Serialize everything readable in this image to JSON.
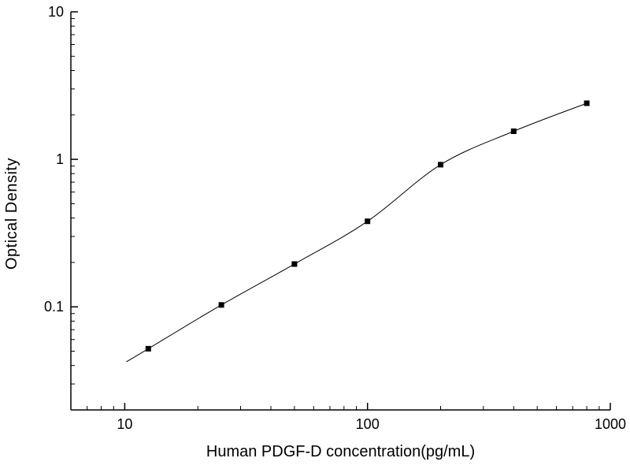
{
  "figure": {
    "background": "#ffffff",
    "axis_color": "#000000"
  },
  "chart_data": {
    "type": "scatter",
    "title": "",
    "xlabel": "Human PDGF-D concentration(pg/mL)",
    "ylabel": "Optical Density",
    "x_scale": "log",
    "y_scale": "log",
    "xlim": [
      6,
      1000
    ],
    "ylim": [
      0.02,
      10
    ],
    "x_major_ticks": [
      10,
      100,
      1000
    ],
    "y_major_ticks": [
      0.1,
      1,
      10
    ],
    "grid": "off",
    "legend": "none",
    "marker": "square",
    "marker_color": "#000000",
    "line_color": "#000000",
    "x": [
      12.5,
      25,
      50,
      100,
      200,
      400,
      800
    ],
    "y": [
      0.052,
      0.103,
      0.195,
      0.38,
      0.92,
      1.55,
      2.4
    ],
    "fit": "smooth sigmoidal standard curve through points"
  }
}
